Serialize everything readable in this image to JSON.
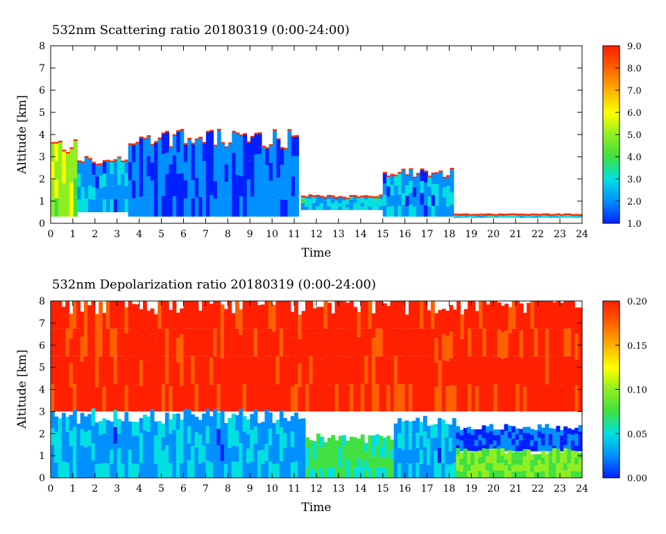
{
  "chart_data": [
    {
      "type": "heatmap",
      "title": "532nm Scattering ratio  20180319 (0:00-24:00)",
      "xlabel": "Time",
      "ylabel": "Altitude [km]",
      "xlim": [
        0,
        24
      ],
      "ylim": [
        0,
        8
      ],
      "x_ticks": [
        "0",
        "1",
        "2",
        "3",
        "4",
        "5",
        "6",
        "7",
        "8",
        "9",
        "10",
        "11",
        "12",
        "13",
        "14",
        "15",
        "16",
        "17",
        "18",
        "19",
        "20",
        "21",
        "22",
        "23",
        "24"
      ],
      "y_ticks": [
        "0",
        "1",
        "2",
        "3",
        "4",
        "5",
        "6",
        "7",
        "8"
      ],
      "colorbar": {
        "min": 1.0,
        "max": 9.0,
        "ticks": [
          "1.0",
          "2.0",
          "3.0",
          "4.0",
          "5.0",
          "6.0",
          "7.0",
          "8.0",
          "9.0"
        ]
      },
      "colormap": [
        "#0020ff",
        "#0090ff",
        "#00e0e0",
        "#40e040",
        "#90ee20",
        "#ffff00",
        "#ffb000",
        "#ff6000",
        "#ff2000"
      ],
      "features": [
        {
          "t_start": 0.0,
          "t_end": 1.2,
          "alt_bottom": 0.3,
          "alt_top": 3.5,
          "level": 5.0
        },
        {
          "t_start": 1.2,
          "t_end": 3.5,
          "alt_bottom": 0.5,
          "alt_top": 2.8,
          "level": 2.5
        },
        {
          "t_start": 3.5,
          "t_end": 11.2,
          "alt_bottom": 0.3,
          "alt_top": 3.8,
          "level": 2.0
        },
        {
          "t_start": 11.3,
          "t_end": 15.0,
          "alt_bottom": 0.6,
          "alt_top": 1.2,
          "level": 3.0
        },
        {
          "t_start": 15.0,
          "t_end": 18.2,
          "alt_bottom": 0.3,
          "alt_top": 2.3,
          "level": 2.5
        },
        {
          "t_start": 18.2,
          "t_end": 24.0,
          "alt_bottom": 0.25,
          "alt_top": 0.4,
          "level": 3.0
        }
      ]
    },
    {
      "type": "heatmap",
      "title": "532nm Depolarization ratio  20180319 (0:00-24:00)",
      "xlabel": "Time",
      "ylabel": "Altitude [km]",
      "xlim": [
        0,
        24
      ],
      "ylim": [
        0,
        8
      ],
      "x_ticks": [
        "0",
        "1",
        "2",
        "3",
        "4",
        "5",
        "6",
        "7",
        "8",
        "9",
        "10",
        "11",
        "12",
        "13",
        "14",
        "15",
        "16",
        "17",
        "18",
        "19",
        "20",
        "21",
        "22",
        "23",
        "24"
      ],
      "y_ticks": [
        "0",
        "1",
        "2",
        "3",
        "4",
        "5",
        "6",
        "7",
        "8"
      ],
      "colorbar": {
        "min": 0.0,
        "max": 0.2,
        "ticks": [
          "0.00",
          "0.05",
          "0.10",
          "0.15",
          "0.20"
        ]
      },
      "colormap": [
        "#0020ff",
        "#0090ff",
        "#00e0e0",
        "#40e040",
        "#90ee20",
        "#ffff00",
        "#ffb000",
        "#ff6000",
        "#ff2000"
      ],
      "features": [
        {
          "t_start": 0.0,
          "t_end": 24.0,
          "alt_bottom": 3.0,
          "alt_top": 8.0,
          "level": 0.19
        },
        {
          "t_start": 0.0,
          "t_end": 11.5,
          "alt_bottom": 0.0,
          "alt_top": 2.8,
          "level": 0.04
        },
        {
          "t_start": 11.5,
          "t_end": 15.5,
          "alt_bottom": 0.0,
          "alt_top": 1.8,
          "level": 0.07
        },
        {
          "t_start": 15.5,
          "t_end": 18.3,
          "alt_bottom": 0.0,
          "alt_top": 2.5,
          "level": 0.04
        },
        {
          "t_start": 18.3,
          "t_end": 24.0,
          "alt_bottom": 1.2,
          "alt_top": 2.3,
          "level": 0.02
        },
        {
          "t_start": 18.3,
          "t_end": 24.0,
          "alt_bottom": 0.0,
          "alt_top": 1.2,
          "level": 0.09
        }
      ]
    }
  ]
}
